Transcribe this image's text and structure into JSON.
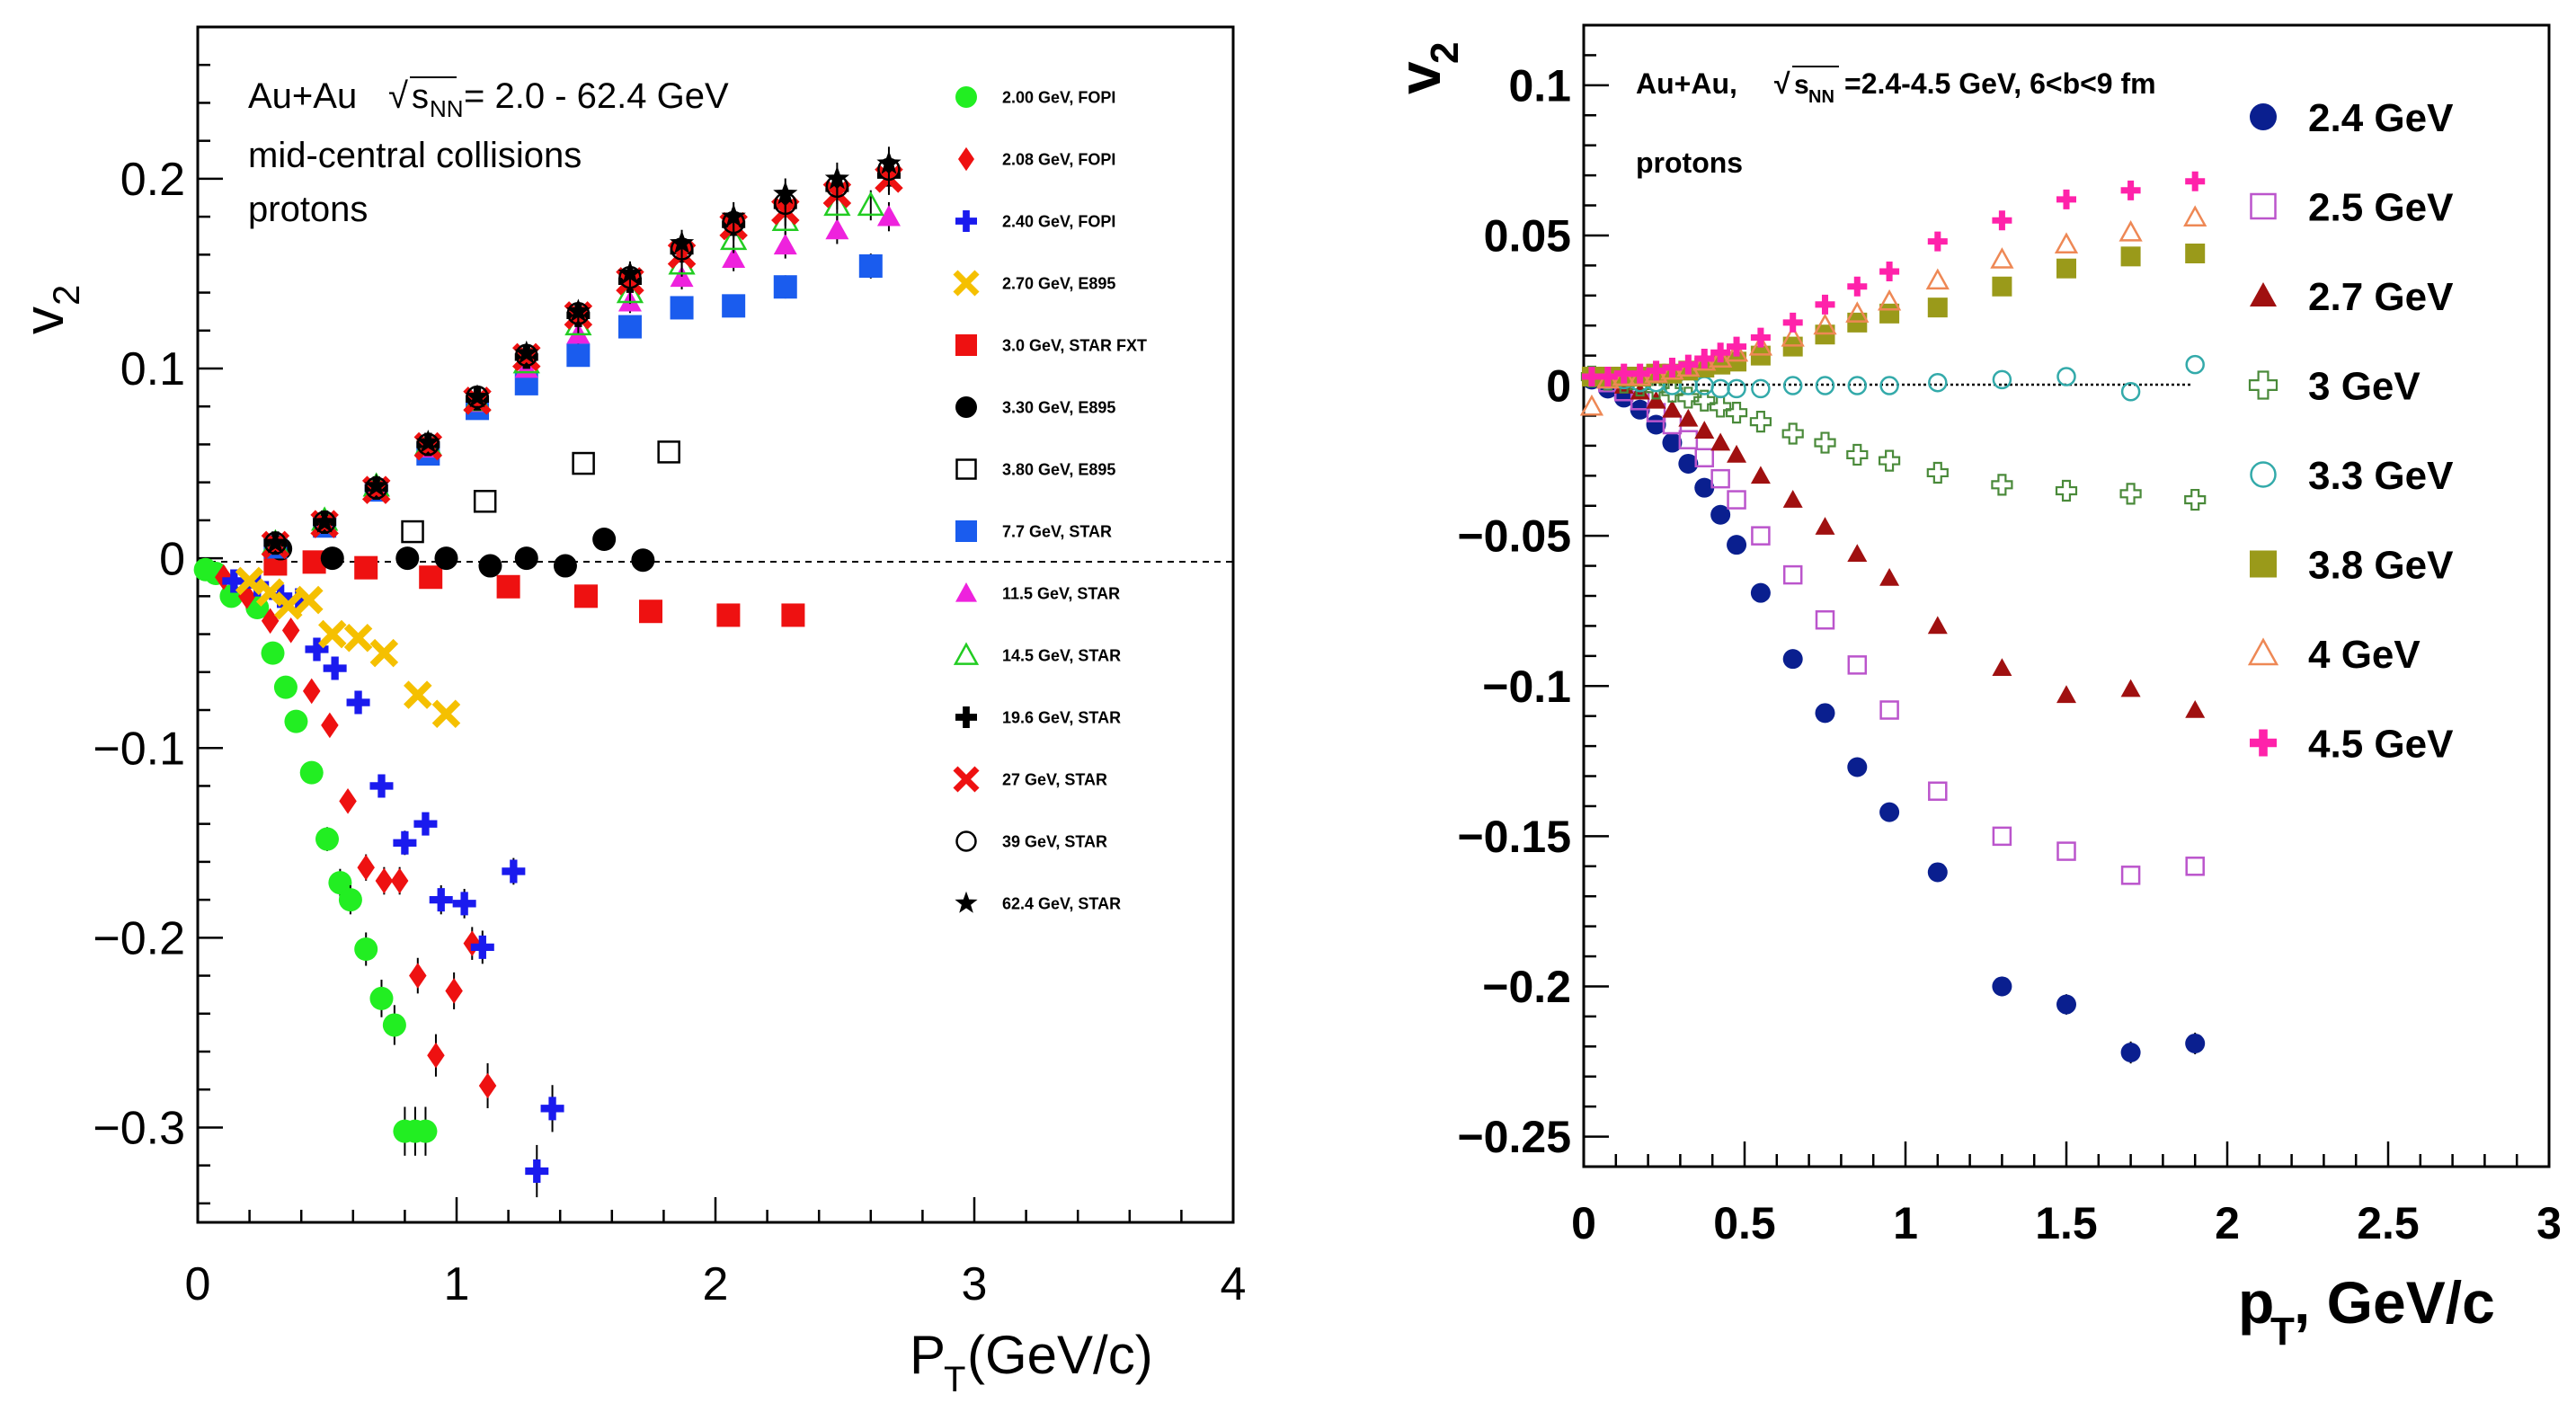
{
  "chart_data": [
    {
      "type": "scatter",
      "title": "",
      "annotations": [
        "Au+Au",
        "s",
        "NN",
        "= 2.0 - 62.4 GeV",
        "mid-central collisions",
        "protons"
      ],
      "xlabel": "P",
      "xlabel_sub": "T",
      "xlabel_rest": " (GeV/c)",
      "ylabel": "v",
      "ylabel_sub": "2",
      "xlim": [
        0,
        4
      ],
      "ylim": [
        -0.35,
        0.28
      ],
      "xticks": [
        "0",
        "1",
        "2",
        "3",
        "4"
      ],
      "yticks": [
        "0.2",
        "0.1",
        "0",
        "−0.1",
        "−0.2",
        "−0.3"
      ],
      "ytick_values": [
        0.2,
        0.1,
        0,
        -0.1,
        -0.2,
        -0.3
      ],
      "legend_position": "right",
      "series": [
        {
          "name": "2.00 GeV, FOPI",
          "marker": "circle",
          "color": "#22ee22",
          "x": [
            0.03,
            0.07,
            0.13,
            0.23,
            0.29,
            0.34,
            0.38,
            0.44,
            0.5,
            0.55,
            0.59,
            0.65,
            0.71,
            0.76,
            0.8,
            0.84,
            0.88
          ],
          "y": [
            -0.006,
            -0.008,
            -0.02,
            -0.026,
            -0.05,
            -0.068,
            -0.086,
            -0.113,
            -0.148,
            -0.171,
            -0.18,
            -0.206,
            -0.232,
            -0.246,
            -0.302,
            -0.302,
            -0.302
          ]
        },
        {
          "name": "2.08 GeV, FOPI",
          "marker": "diamond",
          "color": "#ee1111",
          "x": [
            0.1,
            0.19,
            0.28,
            0.36,
            0.44,
            0.51,
            0.58,
            0.65,
            0.72,
            0.78,
            0.85,
            0.92,
            0.99,
            1.06,
            1.12
          ],
          "y": [
            -0.01,
            -0.02,
            -0.033,
            -0.038,
            -0.07,
            -0.088,
            -0.128,
            -0.163,
            -0.17,
            -0.17,
            -0.22,
            -0.262,
            -0.228,
            -0.203,
            -0.278
          ]
        },
        {
          "name": "2.40 GeV, FOPI",
          "marker": "plus",
          "color": "#1a1aee",
          "x": [
            0.14,
            0.23,
            0.32,
            0.39,
            0.46,
            0.53,
            0.62,
            0.71,
            0.8,
            0.88,
            0.94,
            1.03,
            1.1,
            1.22,
            1.31,
            1.37
          ],
          "y": [
            -0.012,
            -0.014,
            -0.02,
            -0.022,
            -0.048,
            -0.058,
            -0.076,
            -0.12,
            -0.15,
            -0.14,
            -0.18,
            -0.182,
            -0.205,
            -0.165,
            -0.323,
            -0.29
          ]
        },
        {
          "name": "2.70 GeV, E895",
          "marker": "cross",
          "color": "#f5c000",
          "x": [
            0.2,
            0.28,
            0.35,
            0.43,
            0.52,
            0.62,
            0.72,
            0.85,
            0.96
          ],
          "y": [
            -0.012,
            -0.018,
            -0.025,
            -0.022,
            -0.04,
            -0.042,
            -0.05,
            -0.072,
            -0.082
          ]
        },
        {
          "name": "3.0 GeV, STAR FXT",
          "marker": "square",
          "color": "#ee1111",
          "x": [
            0.3,
            0.45,
            0.65,
            0.9,
            1.2,
            1.5,
            1.75,
            2.05,
            2.3
          ],
          "y": [
            -0.003,
            -0.002,
            -0.005,
            -0.01,
            -0.015,
            -0.02,
            -0.028,
            -0.03,
            -0.03
          ]
        },
        {
          "name": "3.30 GeV, E895",
          "marker": "circle",
          "color": "#000000",
          "x": [
            0.32,
            0.52,
            0.81,
            0.96,
            1.13,
            1.27,
            1.42,
            1.57,
            1.72
          ],
          "y": [
            0.005,
            0.0,
            0.0,
            0.0,
            -0.004,
            0.0,
            -0.004,
            0.01,
            -0.001
          ]
        },
        {
          "name": "3.80 GeV, E895",
          "marker": "osquare",
          "color": "#000000",
          "x": [
            0.83,
            1.11,
            1.49,
            1.82
          ],
          "y": [
            0.014,
            0.03,
            0.05,
            0.056
          ]
        },
        {
          "name": "7.7 GeV, STAR",
          "marker": "square",
          "color": "#1a5cee",
          "x": [
            0.3,
            0.49,
            0.69,
            0.89,
            1.08,
            1.27,
            1.47,
            1.67,
            1.87,
            2.07,
            2.27,
            2.6
          ],
          "y": [
            0.006,
            0.017,
            0.036,
            0.055,
            0.079,
            0.092,
            0.107,
            0.122,
            0.132,
            0.133,
            0.143,
            0.154
          ]
        },
        {
          "name": "11.5 GeV, STAR",
          "marker": "triangle",
          "color": "#ee22dd",
          "x": [
            0.3,
            0.49,
            0.69,
            0.89,
            1.08,
            1.27,
            1.47,
            1.67,
            1.87,
            2.07,
            2.27,
            2.47,
            2.67
          ],
          "y": [
            0.007,
            0.018,
            0.037,
            0.058,
            0.082,
            0.1,
            0.118,
            0.135,
            0.148,
            0.158,
            0.165,
            0.173,
            0.18
          ]
        },
        {
          "name": "14.5 GeV, STAR",
          "marker": "otriangle",
          "color": "#22cc22",
          "x": [
            0.3,
            0.49,
            0.69,
            0.89,
            1.08,
            1.27,
            1.47,
            1.67,
            1.87,
            2.07,
            2.27,
            2.47,
            2.6
          ],
          "y": [
            0.008,
            0.02,
            0.038,
            0.06,
            0.083,
            0.103,
            0.123,
            0.14,
            0.155,
            0.168,
            0.178,
            0.186,
            0.186
          ]
        },
        {
          "name": "19.6 GeV, STAR",
          "marker": "plus",
          "color": "#000000",
          "x": [
            0.3,
            0.49,
            0.69,
            0.89,
            1.08,
            1.27,
            1.47,
            1.67,
            1.87,
            2.07,
            2.27,
            2.47,
            2.67
          ],
          "y": [
            0.008,
            0.019,
            0.037,
            0.06,
            0.084,
            0.106,
            0.128,
            0.146,
            0.162,
            0.176,
            0.186,
            0.195,
            0.202
          ]
        },
        {
          "name": "27 GeV, STAR",
          "marker": "cross",
          "color": "#ee1111",
          "x": [
            0.3,
            0.49,
            0.69,
            0.89,
            1.08,
            1.27,
            1.47,
            1.67,
            1.87,
            2.07,
            2.27,
            2.47,
            2.67
          ],
          "y": [
            0.007,
            0.018,
            0.036,
            0.059,
            0.083,
            0.106,
            0.128,
            0.146,
            0.16,
            0.175,
            0.183,
            0.192,
            0.2
          ]
        },
        {
          "name": "39 GeV, STAR",
          "marker": "ocircle",
          "color": "#000000",
          "x": [
            0.3,
            0.49,
            0.69,
            0.89,
            1.08,
            1.27,
            1.47,
            1.67,
            1.87,
            2.07,
            2.27,
            2.47,
            2.67
          ],
          "y": [
            0.008,
            0.019,
            0.037,
            0.06,
            0.085,
            0.107,
            0.129,
            0.148,
            0.163,
            0.177,
            0.187,
            0.196,
            0.205
          ]
        },
        {
          "name": "62.4 GeV, STAR",
          "marker": "star",
          "color": "#000000",
          "x": [
            0.3,
            0.49,
            0.69,
            0.89,
            1.08,
            1.27,
            1.47,
            1.67,
            1.87,
            2.07,
            2.27,
            2.47,
            2.67
          ],
          "y": [
            0.008,
            0.019,
            0.038,
            0.061,
            0.085,
            0.108,
            0.13,
            0.15,
            0.166,
            0.18,
            0.192,
            0.2,
            0.208
          ]
        }
      ]
    },
    {
      "type": "scatter",
      "title": "",
      "annotations": [
        "Au+Au, ",
        "s",
        "NN",
        "=2.4-4.5 GeV, 6<b<9 fm",
        "protons"
      ],
      "xlabel": "p",
      "xlabel_sub": "T",
      "xlabel_rest": ", GeV/c",
      "ylabel": "v",
      "ylabel_sub": "2",
      "xlim": [
        0,
        3
      ],
      "ylim": [
        -0.26,
        0.12
      ],
      "xticks": [
        "0",
        "0.5",
        "1",
        "1.5",
        "2",
        "2.5",
        "3"
      ],
      "yticks": [
        "0.1",
        "0.05",
        "0",
        "−0.05",
        "−0.1",
        "−0.15",
        "−0.2",
        "−0.25"
      ],
      "ytick_values": [
        0.1,
        0.05,
        0,
        -0.05,
        -0.1,
        -0.15,
        -0.2,
        -0.25
      ],
      "legend_position": "right",
      "series": [
        {
          "name": "2.4 GeV",
          "marker": "circle",
          "color": "#0a1f8f",
          "x": [
            0.025,
            0.075,
            0.125,
            0.175,
            0.225,
            0.275,
            0.325,
            0.375,
            0.425,
            0.475,
            0.55,
            0.65,
            0.75,
            0.85,
            0.95,
            1.1,
            1.3,
            1.5,
            1.7,
            1.9
          ],
          "y": [
            0.002,
            -0.001,
            -0.004,
            -0.008,
            -0.013,
            -0.019,
            -0.026,
            -0.034,
            -0.043,
            -0.053,
            -0.069,
            -0.091,
            -0.109,
            -0.127,
            -0.142,
            -0.162,
            -0.2,
            -0.206,
            -0.222,
            -0.219
          ]
        },
        {
          "name": "2.5 GeV",
          "marker": "osquare",
          "color": "#bb55cc",
          "x": [
            0.025,
            0.075,
            0.125,
            0.175,
            0.225,
            0.275,
            0.325,
            0.375,
            0.425,
            0.475,
            0.55,
            0.65,
            0.75,
            0.85,
            0.95,
            1.1,
            1.3,
            1.5,
            1.7,
            1.9
          ],
          "y": [
            0.003,
            0.001,
            -0.002,
            -0.005,
            -0.009,
            -0.013,
            -0.018,
            -0.024,
            -0.031,
            -0.038,
            -0.05,
            -0.063,
            -0.078,
            -0.093,
            -0.108,
            -0.135,
            -0.15,
            -0.155,
            -0.163,
            -0.16
          ]
        },
        {
          "name": "2.7 GeV",
          "marker": "triangle",
          "color": "#a01010",
          "x": [
            0.025,
            0.075,
            0.125,
            0.175,
            0.225,
            0.275,
            0.325,
            0.375,
            0.425,
            0.475,
            0.55,
            0.65,
            0.75,
            0.85,
            0.95,
            1.1,
            1.3,
            1.5,
            1.7,
            1.9
          ],
          "y": [
            0.003,
            0.002,
            0.0,
            -0.002,
            -0.005,
            -0.008,
            -0.011,
            -0.015,
            -0.019,
            -0.023,
            -0.03,
            -0.038,
            -0.047,
            -0.056,
            -0.064,
            -0.08,
            -0.094,
            -0.103,
            -0.101,
            -0.108
          ]
        },
        {
          "name": "3 GeV",
          "marker": "oplus",
          "color": "#4a8a3a",
          "x": [
            0.025,
            0.075,
            0.125,
            0.175,
            0.225,
            0.275,
            0.325,
            0.375,
            0.425,
            0.475,
            0.55,
            0.65,
            0.75,
            0.85,
            0.95,
            1.1,
            1.3,
            1.5,
            1.7,
            1.9
          ],
          "y": [
            0.003,
            0.002,
            0.001,
            0.0,
            -0.001,
            -0.002,
            -0.004,
            -0.005,
            -0.007,
            -0.009,
            -0.012,
            -0.016,
            -0.019,
            -0.023,
            -0.025,
            -0.029,
            -0.033,
            -0.035,
            -0.036,
            -0.038
          ]
        },
        {
          "name": "3.3 GeV",
          "marker": "ocircle",
          "color": "#33aaaa",
          "x": [
            0.025,
            0.075,
            0.125,
            0.175,
            0.225,
            0.275,
            0.325,
            0.375,
            0.425,
            0.475,
            0.55,
            0.65,
            0.75,
            0.85,
            0.95,
            1.1,
            1.3,
            1.5,
            1.7,
            1.9
          ],
          "y": [
            0.003,
            0.002,
            0.002,
            0.001,
            0.001,
            0.0,
            0.0,
            0.0,
            -0.001,
            -0.001,
            -0.001,
            0.0,
            0.0,
            0.0,
            0.0,
            0.001,
            0.002,
            0.003,
            -0.002,
            0.007
          ]
        },
        {
          "name": "3.8 GeV",
          "marker": "square",
          "color": "#9a9a1a",
          "x": [
            0.025,
            0.075,
            0.125,
            0.175,
            0.225,
            0.275,
            0.325,
            0.375,
            0.425,
            0.475,
            0.55,
            0.65,
            0.75,
            0.85,
            0.95,
            1.1,
            1.3,
            1.5,
            1.7,
            1.9
          ],
          "y": [
            0.003,
            0.003,
            0.003,
            0.003,
            0.004,
            0.004,
            0.005,
            0.006,
            0.007,
            0.008,
            0.01,
            0.013,
            0.017,
            0.021,
            0.024,
            0.026,
            0.033,
            0.039,
            0.043,
            0.044
          ]
        },
        {
          "name": "4 GeV",
          "marker": "otriangle",
          "color": "#ee8855",
          "x": [
            0.025,
            0.075,
            0.125,
            0.175,
            0.225,
            0.275,
            0.325,
            0.375,
            0.425,
            0.475,
            0.55,
            0.65,
            0.75,
            0.85,
            0.95,
            1.1,
            1.3,
            1.5,
            1.7,
            1.9
          ],
          "y": [
            -0.007,
            0.002,
            0.003,
            0.003,
            0.004,
            0.005,
            0.006,
            0.008,
            0.009,
            0.011,
            0.013,
            0.016,
            0.02,
            0.024,
            0.028,
            0.035,
            0.042,
            0.047,
            0.051,
            0.056
          ]
        },
        {
          "name": "4.5 GeV",
          "marker": "plus",
          "color": "#ff22aa",
          "x": [
            0.025,
            0.075,
            0.125,
            0.175,
            0.225,
            0.275,
            0.325,
            0.375,
            0.425,
            0.475,
            0.55,
            0.65,
            0.75,
            0.85,
            0.95,
            1.1,
            1.3,
            1.5,
            1.7,
            1.9
          ],
          "y": [
            0.003,
            0.003,
            0.004,
            0.004,
            0.005,
            0.006,
            0.007,
            0.009,
            0.011,
            0.013,
            0.016,
            0.021,
            0.027,
            0.033,
            0.038,
            0.048,
            0.055,
            0.062,
            0.065,
            0.068
          ]
        }
      ]
    }
  ]
}
